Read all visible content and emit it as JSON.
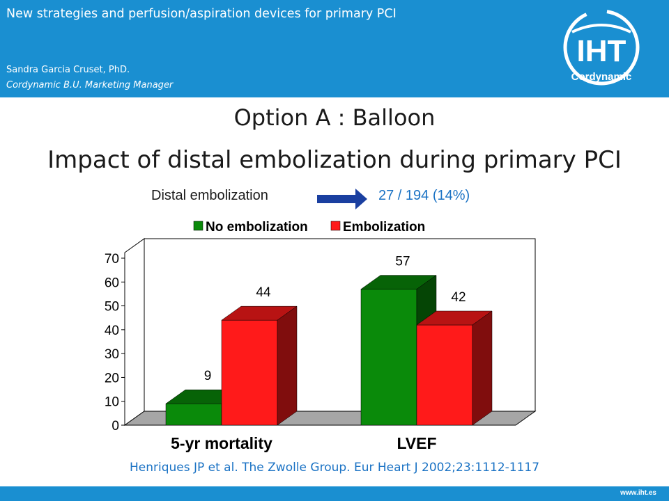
{
  "header": {
    "title": "New strategies and perfusion/aspiration devices for primary PCI",
    "author": "Sandra Garcia Cruset, PhD.",
    "role": "Cordynamic B.U. Marketing Manager",
    "logo_text": "IHT",
    "logo_subtext": "Cordynamic"
  },
  "slide": {
    "option_title": "Option A : Balloon",
    "impact_title": "Impact of distal embolization during primary PCI",
    "embolization_label": "Distal embolization",
    "embolization_value": "27 / 194 (14%)",
    "citation": "Henriques JP et al. The Zwolle Group. Eur Heart J 2002;23:1112-1117"
  },
  "footer": {
    "url": "www.iht.es"
  },
  "colors": {
    "header_bg": "#1a8fd1",
    "no_embolization": "#0a8a0a",
    "embolization": "#ff1a1a",
    "citation": "#1a72c4",
    "arrow": "#1a3fa0"
  },
  "chart_data": {
    "type": "bar",
    "categories": [
      "5-yr mortality",
      "LVEF"
    ],
    "series": [
      {
        "name": "No embolization",
        "values": [
          9,
          57
        ]
      },
      {
        "name": "Embolization",
        "values": [
          44,
          42
        ]
      }
    ],
    "data_labels": [
      [
        "9",
        "57"
      ],
      [
        "44",
        "42"
      ]
    ],
    "y_ticks": [
      0,
      10,
      20,
      30,
      40,
      50,
      60,
      70
    ],
    "ylim": [
      0,
      70
    ],
    "legend_position": "top",
    "grid": false,
    "style": "3d"
  }
}
